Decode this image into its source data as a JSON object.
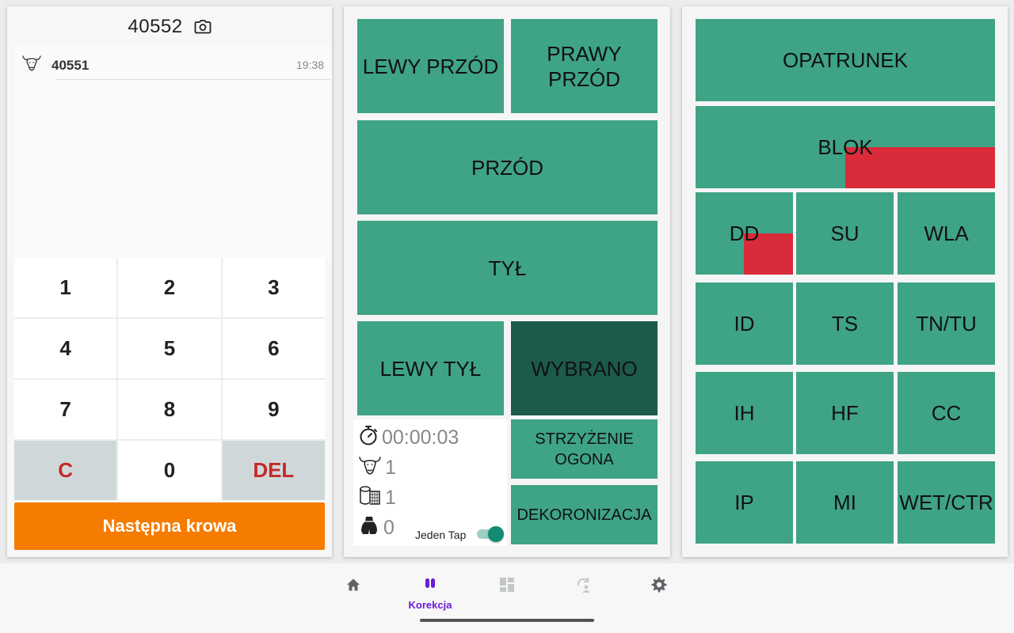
{
  "left": {
    "current_id": "40552",
    "history": [
      {
        "id": "40551",
        "time": "19:38"
      }
    ],
    "keys": [
      "1",
      "2",
      "3",
      "4",
      "5",
      "6",
      "7",
      "8",
      "9",
      "C",
      "0",
      "DEL"
    ],
    "next_button": "Następna krowa"
  },
  "middle": {
    "tiles": {
      "lewy_przod": "LEWY PRZÓD",
      "prawy_przod_1": "PRAWY",
      "prawy_przod_2": "PRZÓD",
      "przod": "PRZÓD",
      "tyl": "TYŁ",
      "lewy_tyl": "LEWY TYŁ",
      "wybrano": "WYBRANO",
      "strzyzenie_1": "STRZYŻENIE",
      "strzyzenie_2": "OGONA",
      "dekoronizacja": "DEKORONIZACJA"
    },
    "stats": {
      "timer": "00:00:03",
      "cows": "1",
      "blocks": "1",
      "other": "0",
      "jeden_tap_label": "Jeden Tap",
      "jeden_tap_on": true
    }
  },
  "right": {
    "tiles": [
      "OPATRUNEK",
      "BLOK",
      "DD",
      "SU",
      "WLA",
      "ID",
      "TS",
      "TN/TU",
      "IH",
      "HF",
      "CC",
      "IP",
      "MI",
      "WET/CTR"
    ]
  },
  "nav": {
    "active_label": "Korekcja",
    "items": [
      "home-icon",
      "korekcja-icon",
      "dashboard-icon",
      "swap-icon",
      "settings-icon"
    ]
  },
  "colors": {
    "tile": "#3fa386",
    "tile_selected": "#1c5a4b",
    "marker_red": "#d92b3a",
    "next_button": "#f57c00",
    "accent": "#6a1bd8"
  }
}
